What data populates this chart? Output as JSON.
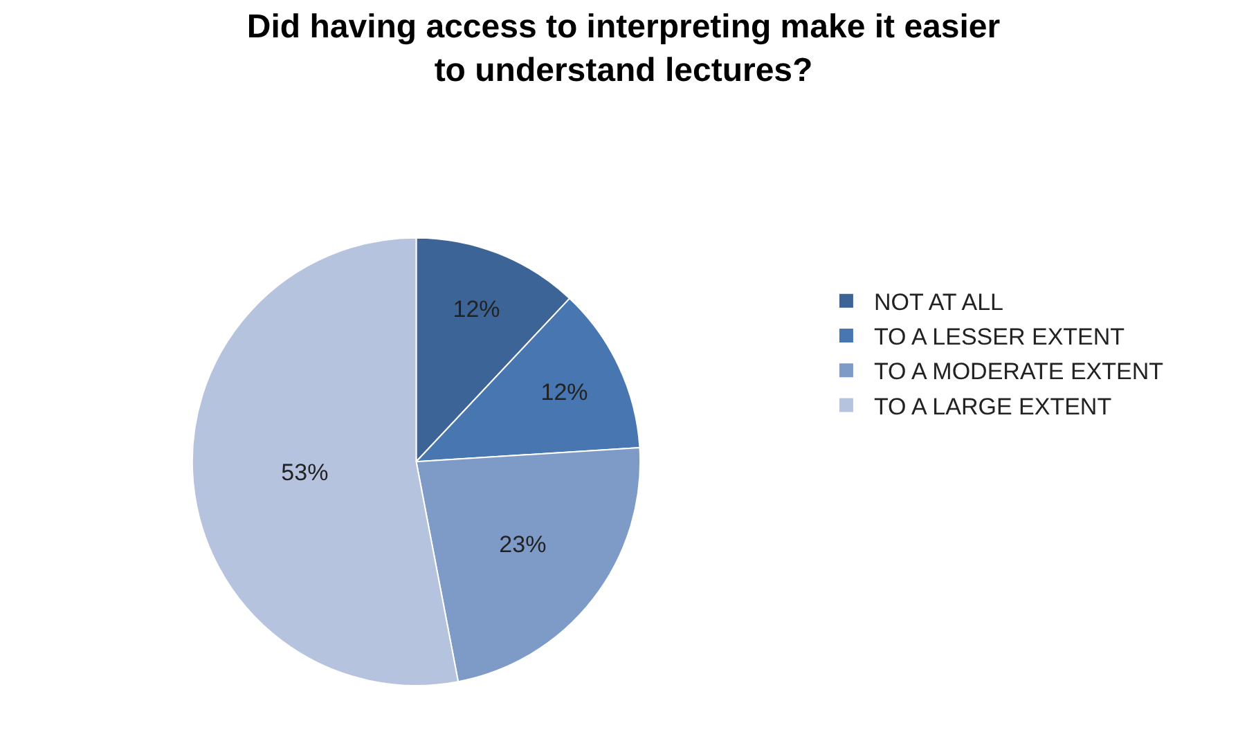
{
  "chart_data": {
    "type": "pie",
    "title": "Did having access to interpreting make it easier\nto understand lectures?",
    "categories": [
      "NOT AT ALL",
      "TO A LESSER EXTENT",
      "TO A MODERATE EXTENT",
      "TO A LARGE EXTENT"
    ],
    "values": [
      12,
      12,
      23,
      53
    ],
    "colors": [
      "#3d6496",
      "#4776b0",
      "#7e9bc8",
      "#b6c3de"
    ],
    "value_labels": [
      "12%",
      "12%",
      "23%",
      "53%"
    ],
    "legend": "right"
  }
}
